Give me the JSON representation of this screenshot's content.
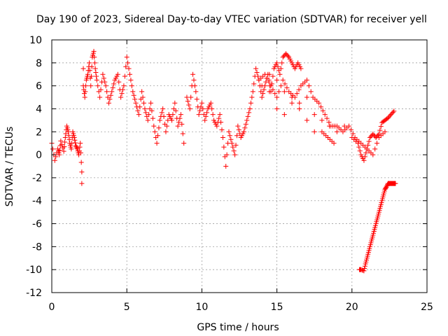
{
  "chart_data": {
    "type": "scatter",
    "title": "Day 190 of 2023, Sidereal Day-to-day VTEC variation (SDTVAR) for receiver yell",
    "xlabel": "GPS time / hours",
    "ylabel": "SDTVAR / TECUs",
    "xlim": [
      0,
      25
    ],
    "ylim": [
      -12,
      10
    ],
    "xticks": [
      0,
      5,
      10,
      15,
      20,
      25
    ],
    "yticks": [
      -12,
      -10,
      -8,
      -6,
      -4,
      -2,
      0,
      2,
      4,
      6,
      8,
      10
    ],
    "grid": true,
    "marker": "+",
    "color": "#ff0000",
    "series": [
      {
        "name": "SDTVAR",
        "x": [
          0.0,
          0.2,
          0.4,
          0.5,
          0.6,
          0.8,
          0.9,
          1.0,
          1.1,
          1.2,
          1.3,
          1.4,
          1.5,
          1.6,
          1.7,
          1.8,
          1.9,
          2.0,
          2.0,
          2.1,
          2.1,
          2.2,
          2.3,
          2.4,
          2.5,
          2.6,
          2.7,
          2.8,
          2.9,
          3.0,
          3.2,
          3.4,
          3.6,
          3.8,
          4.0,
          4.2,
          4.4,
          4.6,
          4.8,
          5.0,
          5.2,
          5.4,
          5.6,
          5.8,
          6.0,
          6.2,
          6.4,
          6.6,
          6.8,
          7.0,
          7.2,
          7.4,
          7.6,
          7.8,
          8.0,
          8.2,
          8.4,
          8.6,
          8.8,
          9.0,
          9.2,
          9.4,
          9.6,
          9.8,
          10.0,
          10.2,
          10.4,
          10.6,
          10.8,
          11.0,
          11.2,
          11.4,
          11.6,
          11.8,
          12.0,
          12.2,
          12.4,
          12.6,
          12.8,
          13.0,
          13.2,
          13.4,
          13.6,
          13.8,
          14.0,
          14.2,
          14.4,
          14.6,
          14.8,
          15.0,
          15.2,
          15.4,
          15.6,
          15.8,
          16.0,
          16.2,
          16.4,
          16.6,
          13.8,
          14.2,
          14.6,
          15.0,
          15.4,
          15.8,
          16.2,
          16.6,
          17.0,
          17.4,
          17.8,
          18.2,
          18.6,
          19.0,
          19.4,
          19.8,
          20.2,
          20.6,
          21.0,
          21.4,
          21.8,
          22.2,
          14.0,
          14.5,
          15.0,
          15.5,
          16.0,
          16.5,
          17.0,
          17.5,
          18.0,
          18.4,
          18.8,
          14.5,
          15.0,
          15.5,
          16.0,
          16.5,
          17.0,
          17.5,
          18.0,
          18.5,
          19.0,
          19.5,
          20.0,
          20.4,
          20.6,
          20.8,
          21.0,
          21.2,
          21.4,
          21.6,
          21.8,
          22.0,
          22.2,
          22.4,
          22.6,
          22.8,
          20.5,
          20.6,
          20.8,
          20.9,
          21.0,
          21.1,
          21.2,
          21.3,
          21.4,
          21.5,
          21.6,
          21.7,
          21.8,
          21.9,
          22.0,
          22.1,
          22.2,
          22.3,
          22.4,
          22.5,
          22.6,
          22.7,
          22.8,
          22.9
        ],
        "y": [
          1.0,
          -0.5,
          0.5,
          0.0,
          1.2,
          0.3,
          1.5,
          2.5,
          2.0,
          1.0,
          0.5,
          2.0,
          1.5,
          0.8,
          0.5,
          0.0,
          1.0,
          -1.5,
          -2.5,
          7.5,
          6.0,
          5.0,
          6.5,
          7.0,
          8.0,
          6.0,
          8.5,
          9.0,
          7.5,
          6.5,
          5.0,
          7.0,
          6.0,
          4.5,
          5.5,
          6.5,
          7.0,
          5.0,
          6.0,
          8.5,
          7.0,
          5.5,
          4.5,
          3.5,
          5.5,
          4.0,
          3.0,
          4.5,
          2.5,
          1.0,
          3.0,
          4.0,
          2.0,
          3.5,
          3.0,
          4.5,
          2.5,
          3.5,
          1.0,
          5.0,
          4.0,
          7.0,
          5.5,
          3.5,
          4.5,
          3.0,
          4.0,
          4.5,
          3.0,
          2.5,
          3.5,
          1.5,
          -1.0,
          2.0,
          1.0,
          0.0,
          2.5,
          1.5,
          2.0,
          3.0,
          4.0,
          5.5,
          7.5,
          6.5,
          5.0,
          6.0,
          7.0,
          5.5,
          7.5,
          8.0,
          7.0,
          8.5,
          8.8,
          8.5,
          8.0,
          7.5,
          8.0,
          7.5,
          6.5,
          7.0,
          6.0,
          5.0,
          6.5,
          5.5,
          5.0,
          6.0,
          6.5,
          5.0,
          4.5,
          3.5,
          2.5,
          2.5,
          2.0,
          2.5,
          1.5,
          1.0,
          0.5,
          0.0,
          1.5,
          2.0,
          6.0,
          5.5,
          4.0,
          3.5,
          4.5,
          4.0,
          5.0,
          3.5,
          2.0,
          1.5,
          1.0,
          7.0,
          6.5,
          5.5,
          5.0,
          4.5,
          3.0,
          2.0,
          3.0,
          2.5,
          2.0,
          2.5,
          1.5,
          1.0,
          0.0,
          -0.5,
          0.5,
          1.5,
          1.8,
          1.5,
          1.8,
          2.8,
          3.0,
          3.2,
          3.5,
          3.8,
          -10.0,
          -10.0,
          -10.1,
          -9.5,
          -9.0,
          -8.5,
          -8.0,
          -7.5,
          -7.0,
          -6.5,
          -6.0,
          -5.5,
          -5.0,
          -4.5,
          -4.0,
          -3.5,
          -3.0,
          -2.8,
          -2.5,
          -2.5,
          -2.5,
          -2.5,
          -2.5,
          -2.5
        ]
      }
    ]
  }
}
